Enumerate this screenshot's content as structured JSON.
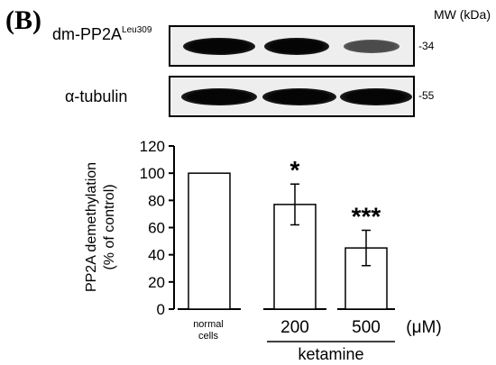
{
  "panel_label": "(B)",
  "mw_header": "MW (kDa)",
  "blots": [
    {
      "label": "dm-PP2A",
      "label_sup": "Leu309",
      "mw": "-34",
      "band_intensity": [
        1.0,
        0.76,
        0.45
      ]
    },
    {
      "label": "α-tubulin",
      "label_sup": "",
      "mw": "-55",
      "band_intensity": [
        1.0,
        1.0,
        1.0
      ]
    }
  ],
  "chart_data": {
    "type": "bar",
    "ylabel_lines": [
      "PP2A demethylation",
      "(% of control)"
    ],
    "ylim": [
      0,
      120
    ],
    "yticks": [
      0,
      20,
      40,
      60,
      80,
      100,
      120
    ],
    "categories": [
      "normal cells",
      "200",
      "500"
    ],
    "category_label_lines": [
      [
        "normal",
        "cells"
      ],
      [
        "200"
      ],
      [
        "500"
      ]
    ],
    "values": [
      100,
      77,
      45
    ],
    "errors": [
      0,
      15,
      13
    ],
    "significance": [
      "",
      "*",
      "***"
    ],
    "unit_label": "(μM)",
    "group_label": "ketamine",
    "grid": false,
    "bar_fill": "#ffffff",
    "bar_stroke": "#000000"
  }
}
